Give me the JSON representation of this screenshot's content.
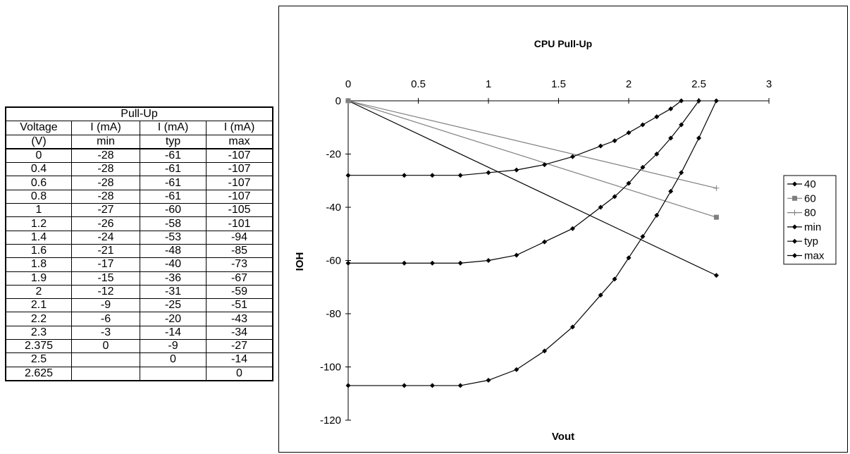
{
  "table": {
    "title": "Pull-Up",
    "header_row1": [
      "Voltage",
      "I (mA)",
      "I (mA)",
      "I (mA)"
    ],
    "header_row2": [
      "(V)",
      "min",
      "typ",
      "max"
    ],
    "rows": [
      [
        "0",
        "-28",
        "-61",
        "-107"
      ],
      [
        "0.4",
        "-28",
        "-61",
        "-107"
      ],
      [
        "0.6",
        "-28",
        "-61",
        "-107"
      ],
      [
        "0.8",
        "-28",
        "-61",
        "-107"
      ],
      [
        "1",
        "-27",
        "-60",
        "-105"
      ],
      [
        "1.2",
        "-26",
        "-58",
        "-101"
      ],
      [
        "1.4",
        "-24",
        "-53",
        "-94"
      ],
      [
        "1.6",
        "-21",
        "-48",
        "-85"
      ],
      [
        "1.8",
        "-17",
        "-40",
        "-73"
      ],
      [
        "1.9",
        "-15",
        "-36",
        "-67"
      ],
      [
        "2",
        "-12",
        "-31",
        "-59"
      ],
      [
        "2.1",
        "-9",
        "-25",
        "-51"
      ],
      [
        "2.2",
        "-6",
        "-20",
        "-43"
      ],
      [
        "2.3",
        "-3",
        "-14",
        "-34"
      ],
      [
        "2.375",
        "0",
        "-9",
        "-27"
      ],
      [
        "2.5",
        "",
        "0",
        "-14"
      ],
      [
        "2.625",
        "",
        "",
        "0"
      ]
    ]
  },
  "chart_data": {
    "type": "line",
    "title": "CPU Pull-Up",
    "xlabel": "Vout",
    "ylabel": "IOH",
    "xlim": [
      0,
      3
    ],
    "ylim": [
      -120,
      0
    ],
    "x_ticks": [
      "0",
      "0.5",
      "1",
      "1.5",
      "2",
      "2.5",
      "3"
    ],
    "y_ticks": [
      "0",
      "-20",
      "-40",
      "-60",
      "-80",
      "-100",
      "-120"
    ],
    "x_axis_position": "top",
    "grid": false,
    "legend_position": "right",
    "series": [
      {
        "name": "40",
        "marker": "diamond",
        "color": "#000000",
        "x": [
          0,
          2.625
        ],
        "y": [
          0,
          -65.6
        ]
      },
      {
        "name": "60",
        "marker": "square",
        "color": "#7f7f7f",
        "x": [
          0,
          2.625
        ],
        "y": [
          0,
          -43.75
        ]
      },
      {
        "name": "80",
        "marker": "plus",
        "color": "#7f7f7f",
        "x": [
          0,
          2.625
        ],
        "y": [
          0,
          -32.8
        ]
      },
      {
        "name": "min",
        "marker": "diamond",
        "color": "#000000",
        "x": [
          0,
          0.4,
          0.6,
          0.8,
          1,
          1.2,
          1.4,
          1.6,
          1.8,
          1.9,
          2,
          2.1,
          2.2,
          2.3,
          2.375
        ],
        "y": [
          -28,
          -28,
          -28,
          -28,
          -27,
          -26,
          -24,
          -21,
          -17,
          -15,
          -12,
          -9,
          -6,
          -3,
          0
        ]
      },
      {
        "name": "typ",
        "marker": "diamond",
        "color": "#000000",
        "x": [
          0,
          0.4,
          0.6,
          0.8,
          1,
          1.2,
          1.4,
          1.6,
          1.8,
          1.9,
          2,
          2.1,
          2.2,
          2.3,
          2.375,
          2.5
        ],
        "y": [
          -61,
          -61,
          -61,
          -61,
          -60,
          -58,
          -53,
          -48,
          -40,
          -36,
          -31,
          -25,
          -20,
          -14,
          -9,
          0
        ]
      },
      {
        "name": "max",
        "marker": "diamond",
        "color": "#000000",
        "x": [
          0,
          0.4,
          0.6,
          0.8,
          1,
          1.2,
          1.4,
          1.6,
          1.8,
          1.9,
          2,
          2.1,
          2.2,
          2.3,
          2.375,
          2.5,
          2.625
        ],
        "y": [
          -107,
          -107,
          -107,
          -107,
          -105,
          -101,
          -94,
          -85,
          -73,
          -67,
          -59,
          -51,
          -43,
          -34,
          -27,
          -14,
          0
        ]
      }
    ]
  }
}
